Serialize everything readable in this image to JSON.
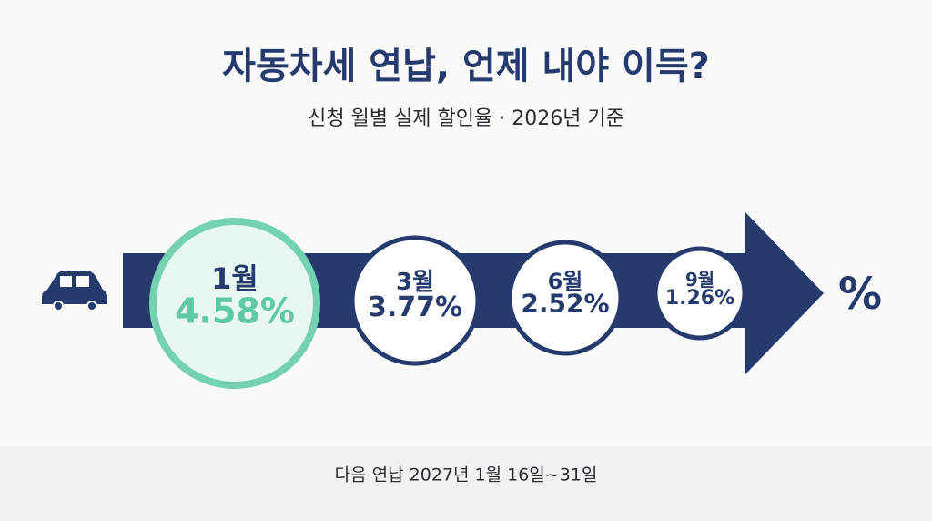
{
  "header": {
    "title": "자동차세 연납, 언제 내야 이득?",
    "subtitle": "신청 월별 실제 할인율 · 2026년 기준"
  },
  "steps": [
    {
      "month": "1월",
      "rate": "4.58%"
    },
    {
      "month": "3월",
      "rate": "3.77%"
    },
    {
      "month": "6월",
      "rate": "2.52%"
    },
    {
      "month": "9월",
      "rate": "1.26%"
    }
  ],
  "arrow_end": "%",
  "footer": "다음 연납 2027년 1월 16일~31일"
}
